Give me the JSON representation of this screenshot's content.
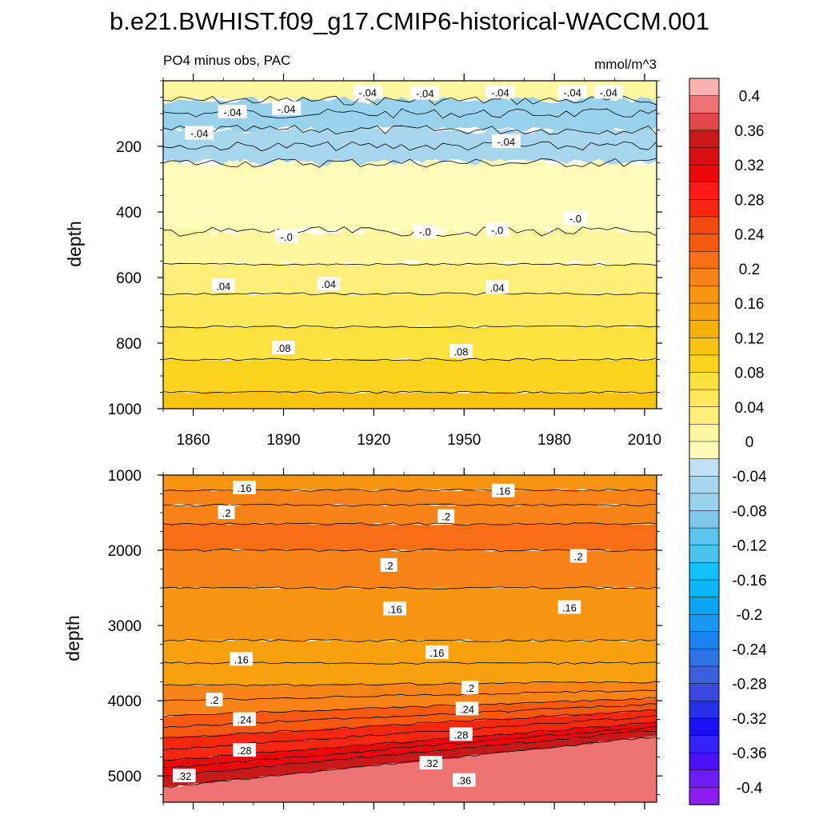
{
  "chart_data": {
    "type": "heatmap",
    "title": "b.e21.BWHIST.f09_g17.CMIP6-historical-WACCM.001",
    "subtitle_left": "PO4 minus obs, PAC",
    "subtitle_right": "mmol/m^3",
    "xlabel": "",
    "ylabel": "depth",
    "x_range": [
      1850,
      2014
    ],
    "x_ticks": [
      "1860",
      "1890",
      "1920",
      "1950",
      "1980",
      "2010"
    ],
    "x_tick_values": [
      1860,
      1890,
      1920,
      1950,
      1980,
      2010
    ],
    "colorbar": {
      "levels": [
        -0.4,
        -0.38,
        -0.36,
        -0.34,
        -0.32,
        -0.3,
        -0.28,
        -0.26,
        -0.24,
        -0.22,
        -0.2,
        -0.18,
        -0.16,
        -0.14,
        -0.12,
        -0.1,
        -0.08,
        -0.06,
        -0.04,
        -0.02,
        0,
        0.02,
        0.04,
        0.06,
        0.08,
        0.1,
        0.12,
        0.14,
        0.16,
        0.18,
        0.2,
        0.22,
        0.24,
        0.26,
        0.28,
        0.3,
        0.32,
        0.34,
        0.36,
        0.38,
        0.4
      ],
      "colors": [
        "#8c1cf0",
        "#6a1ef5",
        "#4a12f5",
        "#3322f5",
        "#1c0ff8",
        "#2530e8",
        "#3b48e0",
        "#3d5ee0",
        "#2f72e6",
        "#1a82ee",
        "#1897f2",
        "#0aa6f5",
        "#0ab6f8",
        "#12c1f7",
        "#49c2ee",
        "#5dc4ef",
        "#7cc8ea",
        "#99d2ec",
        "#a7d7ee",
        "#c0e2f4",
        "#fffcb8",
        "#fff6a0",
        "#ffef7a",
        "#ffe85a",
        "#fde13f",
        "#fbd21c",
        "#f8c412",
        "#f6b20a",
        "#f7a20c",
        "#f89510",
        "#f88418",
        "#f76e14",
        "#f55a10",
        "#f24910",
        "#f5280f",
        "#ff1a1a",
        "#ec0808",
        "#d81010",
        "#c81818",
        "#e04848",
        "#ee7474",
        "#fbb0b0"
      ],
      "label_values": [
        "0.4",
        "0.36",
        "0.32",
        "0.28",
        "0.24",
        "0.2",
        "0.16",
        "0.12",
        "0.08",
        "0.04",
        "0",
        "-0.04",
        "-0.08",
        "-0.12",
        "-0.16",
        "-0.2",
        "-0.24",
        "-0.28",
        "-0.32",
        "-0.36",
        "-0.4"
      ]
    },
    "panels": [
      {
        "name": "upper-0-1000m",
        "y_range": [
          0,
          1000
        ],
        "y_ticks": [
          "200",
          "400",
          "600",
          "800",
          "1000"
        ],
        "y_tick_values": [
          200,
          400,
          600,
          800,
          1000
        ],
        "bands": [
          {
            "top": 0,
            "bottom": 60,
            "value": 0.01
          },
          {
            "top": 60,
            "bottom": 150,
            "value": -0.07
          },
          {
            "top": 150,
            "bottom": 250,
            "value": -0.05
          },
          {
            "top": 250,
            "bottom": 460,
            "value": -0.01
          },
          {
            "top": 460,
            "bottom": 560,
            "value": 0.01
          },
          {
            "top": 560,
            "bottom": 650,
            "value": 0.03
          },
          {
            "top": 650,
            "bottom": 750,
            "value": 0.05
          },
          {
            "top": 750,
            "bottom": 850,
            "value": 0.07
          },
          {
            "top": 850,
            "bottom": 950,
            "value": 0.09
          },
          {
            "top": 950,
            "bottom": 1000,
            "value": 0.11
          }
        ],
        "contour_depths": [
          60,
          100,
          150,
          200,
          250,
          460,
          560,
          650,
          750,
          850,
          950
        ],
        "contour_labels": [
          {
            "text": "-.04",
            "x": 1862,
            "y": 160
          },
          {
            "text": "-.04",
            "x": 1873,
            "y": 95
          },
          {
            "text": "-.04",
            "x": 1891,
            "y": 85
          },
          {
            "text": "-.04",
            "x": 1918,
            "y": 35
          },
          {
            "text": "-.04",
            "x": 1937,
            "y": 38
          },
          {
            "text": "-.04",
            "x": 1962,
            "y": 35
          },
          {
            "text": "-.04",
            "x": 1964,
            "y": 185
          },
          {
            "text": "-.04",
            "x": 1986,
            "y": 35
          },
          {
            "text": "-.04",
            "x": 1998,
            "y": 35
          },
          {
            "text": "-.0",
            "x": 1891,
            "y": 475
          },
          {
            "text": "-.0",
            "x": 1937,
            "y": 460
          },
          {
            "text": "-.0",
            "x": 1961,
            "y": 455
          },
          {
            "text": "-.0",
            "x": 1987,
            "y": 420
          },
          {
            "text": ".04",
            "x": 1870,
            "y": 625
          },
          {
            "text": ".04",
            "x": 1905,
            "y": 620
          },
          {
            "text": ".04",
            "x": 1961,
            "y": 630
          },
          {
            "text": ".08",
            "x": 1890,
            "y": 815
          },
          {
            "text": ".08",
            "x": 1949,
            "y": 825
          }
        ]
      },
      {
        "name": "lower-1000-5500m",
        "y_range": [
          1000,
          5350
        ],
        "y_ticks": [
          "1000",
          "2000",
          "3000",
          "4000",
          "5000"
        ],
        "y_tick_values": [
          1000,
          2000,
          3000,
          4000,
          5000
        ],
        "bands": [
          {
            "top": 1000,
            "bottom": 1200,
            "value": 0.17
          },
          {
            "top": 1200,
            "bottom": 1400,
            "value": 0.19
          },
          {
            "top": 1400,
            "bottom": 1650,
            "value": 0.2
          },
          {
            "top": 1650,
            "bottom": 2000,
            "value": 0.21
          },
          {
            "top": 2000,
            "bottom": 2500,
            "value": 0.19
          },
          {
            "top": 2500,
            "bottom": 3200,
            "value": 0.17
          },
          {
            "top": 3200,
            "bottom": 3800,
            "value": 0.15
          },
          {
            "top": 3800,
            "bottom": 4200,
            "value": 0.19
          },
          {
            "top": 4200,
            "bottom": 4500,
            "value": 0.23
          },
          {
            "top": 4500,
            "bottom": 4800,
            "value": 0.27
          },
          {
            "top": 4800,
            "bottom": 5000,
            "value": 0.31
          },
          {
            "top": 5000,
            "bottom": 5150,
            "value": 0.35
          },
          {
            "top": 5150,
            "bottom": 5350,
            "value": 0.39
          }
        ],
        "contour_depths": [
          1200,
          1400,
          1650,
          2000,
          2500,
          3200,
          3500,
          3800,
          4000,
          4200,
          4350,
          4500,
          4650,
          4800,
          4900,
          5000,
          5150
        ],
        "contour_labels": [
          {
            "text": ".16",
            "x": 1877,
            "y": 1170
          },
          {
            "text": ".16",
            "x": 1963,
            "y": 1210
          },
          {
            "text": ".2",
            "x": 1871,
            "y": 1500
          },
          {
            "text": ".2",
            "x": 1944,
            "y": 1550
          },
          {
            "text": ".2",
            "x": 1988,
            "y": 2080
          },
          {
            "text": ".2",
            "x": 1925,
            "y": 2200
          },
          {
            "text": ".16",
            "x": 1927,
            "y": 2780
          },
          {
            "text": ".16",
            "x": 1985,
            "y": 2760
          },
          {
            "text": ".16",
            "x": 1876,
            "y": 3450
          },
          {
            "text": ".16",
            "x": 1941,
            "y": 3360
          },
          {
            "text": ".2",
            "x": 1952,
            "y": 3830
          },
          {
            "text": ".2",
            "x": 1867,
            "y": 3990
          },
          {
            "text": ".24",
            "x": 1877,
            "y": 4250
          },
          {
            "text": ".24",
            "x": 1951,
            "y": 4110
          },
          {
            "text": ".28",
            "x": 1949,
            "y": 4450
          },
          {
            "text": ".28",
            "x": 1877,
            "y": 4660
          },
          {
            "text": ".32",
            "x": 1939,
            "y": 4830
          },
          {
            "text": ".32",
            "x": 1857,
            "y": 5000
          },
          {
            "text": ".36",
            "x": 1950,
            "y": 5060
          }
        ]
      }
    ]
  }
}
